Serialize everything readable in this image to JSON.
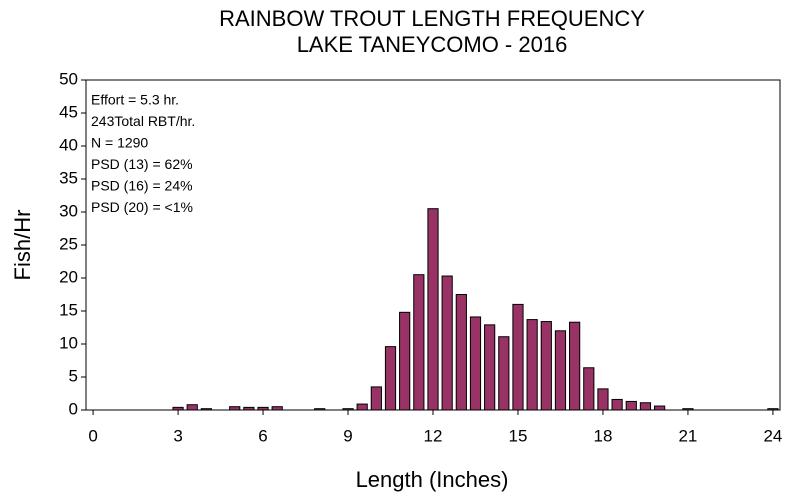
{
  "chart_data": {
    "type": "bar",
    "title": [
      "RAINBOW TROUT LENGTH FREQUENCY",
      "LAKE TANEYCOMO - 2016"
    ],
    "x_label": "Length (Inches)",
    "y_label": "Fish/Hr",
    "annotations": [
      "Effort = 5.3 hr.",
      "243Total RBT/hr.",
      "N = 1290",
      "PSD (13) = 62%",
      "PSD (16) = 24%",
      "PSD (20) = <1%"
    ],
    "x": [
      0,
      0.5,
      1,
      1.5,
      2,
      2.5,
      3,
      3.5,
      4,
      4.5,
      5,
      5.5,
      6,
      6.5,
      7,
      7.5,
      8,
      8.5,
      9,
      9.5,
      10,
      10.5,
      11,
      11.5,
      12,
      12.5,
      13,
      13.5,
      14,
      14.5,
      15,
      15.5,
      16,
      16.5,
      17,
      17.5,
      18,
      18.5,
      19,
      19.5,
      20,
      20.5,
      21,
      21.5,
      22,
      22.5,
      23,
      23.5,
      24
    ],
    "values": [
      0,
      0,
      0,
      0,
      0,
      0,
      0.4,
      0.8,
      0.2,
      0,
      0.5,
      0.4,
      0.4,
      0.5,
      0,
      0,
      0.2,
      0,
      0.2,
      0.9,
      3.5,
      9.6,
      14.8,
      20.5,
      30.5,
      20.3,
      17.5,
      14.1,
      12.9,
      11.1,
      16,
      13.7,
      13.4,
      12,
      13.3,
      6.4,
      3.2,
      1.6,
      1.3,
      1.1,
      0.6,
      0,
      0.2,
      0,
      0,
      0,
      0,
      0,
      0.2
    ],
    "color": "#993366",
    "xlim": [
      -0.25,
      24.25
    ],
    "xticks": [
      0,
      3,
      6,
      9,
      12,
      15,
      18,
      21,
      24
    ],
    "ylim": [
      0,
      50
    ],
    "yticks": [
      0,
      5,
      10,
      15,
      20,
      25,
      30,
      35,
      40,
      45,
      50
    ]
  }
}
